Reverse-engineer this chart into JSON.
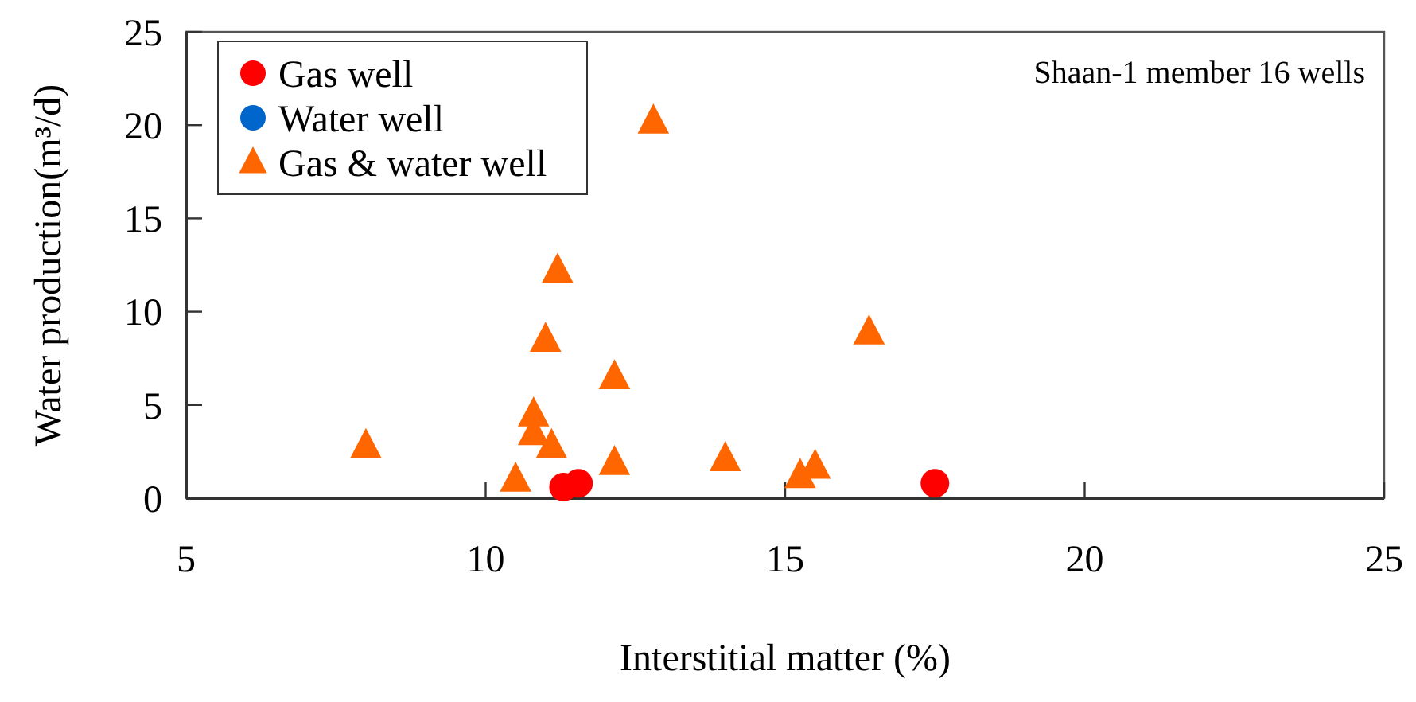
{
  "chart_data": {
    "type": "scatter",
    "xlabel": "Interstitial matter (%)",
    "ylabel": "Water production(m³/d)",
    "annotations": [
      "Shaan-1 member 16 wells"
    ],
    "xlim": [
      5,
      25
    ],
    "xticks": [
      5,
      10,
      15,
      20,
      25
    ],
    "ylim": [
      0,
      25
    ],
    "yticks": [
      0,
      5,
      10,
      15,
      20,
      25
    ],
    "grid": false,
    "legend": "top left",
    "series": [
      {
        "name": "Gas well",
        "color": "#ff0000",
        "marker": "circle",
        "x": [
          11.3,
          11.55,
          17.5
        ],
        "values": [
          0.6,
          0.8,
          0.8
        ]
      },
      {
        "name": "Water well",
        "color": "#0066cc",
        "marker": "circle"
      },
      {
        "name": "Gas & water well",
        "color": "#ff6600",
        "marker": "triangle",
        "x": [
          8.0,
          10.5,
          10.8,
          10.8,
          11.1,
          11.0,
          11.2,
          12.8,
          12.15,
          12.15,
          14.0,
          15.25,
          15.5,
          16.4
        ],
        "values": [
          2.8,
          1.0,
          4.5,
          3.5,
          2.8,
          8.5,
          12.2,
          20.2,
          6.5,
          1.9,
          2.1,
          1.2,
          1.7,
          8.9
        ]
      }
    ]
  }
}
